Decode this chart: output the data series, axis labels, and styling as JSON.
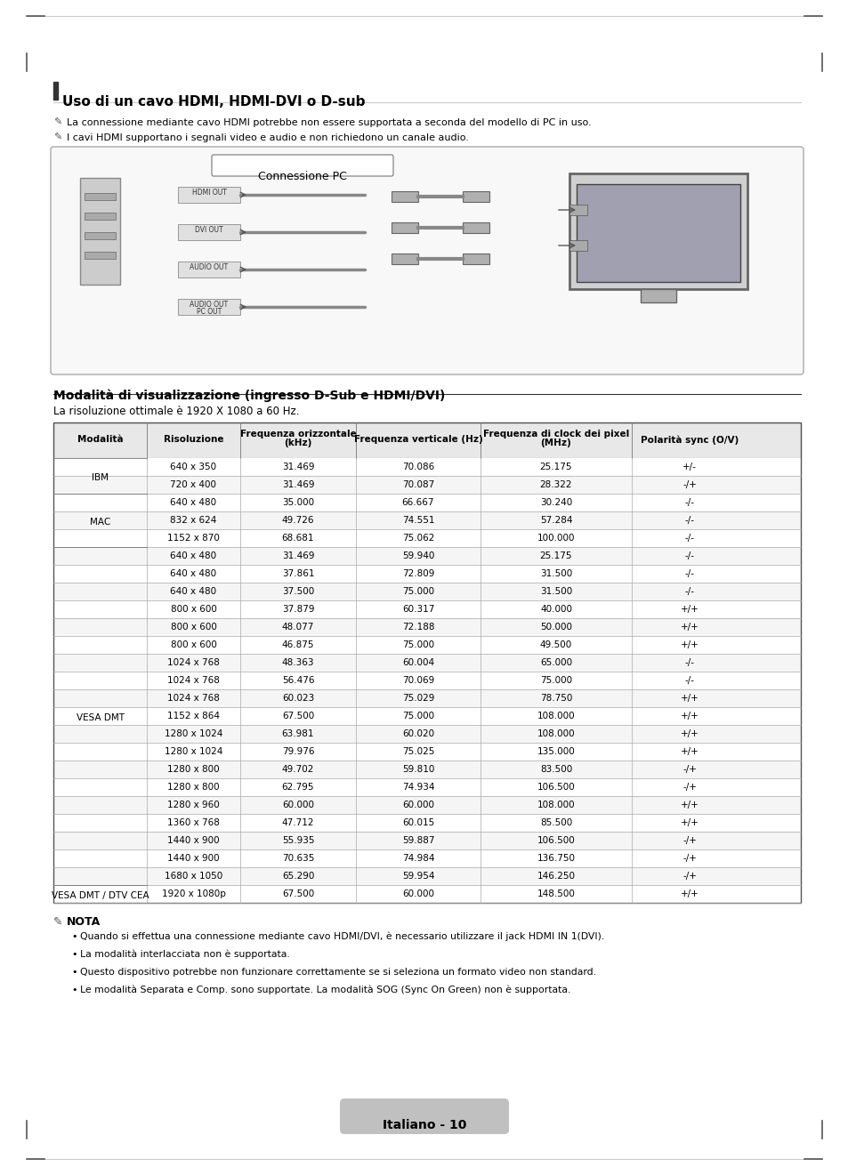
{
  "title": "Uso di un cavo HDMI, HDMI-DVI o D-sub",
  "note1": "La connessione mediante cavo HDMI potrebbe non essere supportata a seconda del modello di PC in uso.",
  "note2": "I cavi HDMI supportano i segnali video e audio e non richiedono un canale audio.",
  "table_title": "Modalità di visualizzazione (ingresso D-Sub e HDMI/DVI)",
  "table_subtitle": "La risoluzione ottimale è 1920 X 1080 a 60 Hz.",
  "col_headers": [
    "Modalità",
    "Risoluzione",
    "Frequenza orizzontale\n(kHz)",
    "Frequenza verticale (Hz)",
    "Frequenza di clock dei pixel\n(MHz)",
    "Polarità sync (O/V)"
  ],
  "table_data": [
    [
      "IBM",
      "640 x 350",
      "31.469",
      "70.086",
      "25.175",
      "+/-"
    ],
    [
      "IBM",
      "720 x 400",
      "31.469",
      "70.087",
      "28.322",
      "-/+"
    ],
    [
      "MAC",
      "640 x 480",
      "35.000",
      "66.667",
      "30.240",
      "-/-"
    ],
    [
      "MAC",
      "832 x 624",
      "49.726",
      "74.551",
      "57.284",
      "-/-"
    ],
    [
      "MAC",
      "1152 x 870",
      "68.681",
      "75.062",
      "100.000",
      "-/-"
    ],
    [
      "VESA DMT",
      "640 x 480",
      "31.469",
      "59.940",
      "25.175",
      "-/-"
    ],
    [
      "VESA DMT",
      "640 x 480",
      "37.861",
      "72.809",
      "31.500",
      "-/-"
    ],
    [
      "VESA DMT",
      "640 x 480",
      "37.500",
      "75.000",
      "31.500",
      "-/-"
    ],
    [
      "VESA DMT",
      "800 x 600",
      "37.879",
      "60.317",
      "40.000",
      "+/+"
    ],
    [
      "VESA DMT",
      "800 x 600",
      "48.077",
      "72.188",
      "50.000",
      "+/+"
    ],
    [
      "VESA DMT",
      "800 x 600",
      "46.875",
      "75.000",
      "49.500",
      "+/+"
    ],
    [
      "VESA DMT",
      "1024 x 768",
      "48.363",
      "60.004",
      "65.000",
      "-/-"
    ],
    [
      "VESA DMT",
      "1024 x 768",
      "56.476",
      "70.069",
      "75.000",
      "-/-"
    ],
    [
      "VESA DMT",
      "1024 x 768",
      "60.023",
      "75.029",
      "78.750",
      "+/+"
    ],
    [
      "VESA DMT",
      "1152 x 864",
      "67.500",
      "75.000",
      "108.000",
      "+/+"
    ],
    [
      "VESA DMT",
      "1280 x 1024",
      "63.981",
      "60.020",
      "108.000",
      "+/+"
    ],
    [
      "VESA DMT",
      "1280 x 1024",
      "79.976",
      "75.025",
      "135.000",
      "+/+"
    ],
    [
      "VESA DMT",
      "1280 x 800",
      "49.702",
      "59.810",
      "83.500",
      "-/+"
    ],
    [
      "VESA DMT",
      "1280 x 800",
      "62.795",
      "74.934",
      "106.500",
      "-/+"
    ],
    [
      "VESA DMT",
      "1280 x 960",
      "60.000",
      "60.000",
      "108.000",
      "+/+"
    ],
    [
      "VESA DMT",
      "1360 x 768",
      "47.712",
      "60.015",
      "85.500",
      "+/+"
    ],
    [
      "VESA DMT",
      "1440 x 900",
      "55.935",
      "59.887",
      "106.500",
      "-/+"
    ],
    [
      "VESA DMT",
      "1440 x 900",
      "70.635",
      "74.984",
      "136.750",
      "-/+"
    ],
    [
      "VESA DMT",
      "1680 x 1050",
      "65.290",
      "59.954",
      "146.250",
      "-/+"
    ],
    [
      "VESA DMT / DTV CEA",
      "1920 x 1080p",
      "67.500",
      "60.000",
      "148.500",
      "+/+"
    ]
  ],
  "nota_title": "NOTA",
  "nota_bullets": [
    "Quando si effettua una connessione mediante cavo HDMI/DVI, è necessario utilizzare il jack HDMI IN 1(DVI).",
    "La modalità interlacciata non è supportata.",
    "Questo dispositivo potrebbe non funzionare correttamente se si seleziona un formato video non standard.",
    "Le modalità Separata e Comp. sono supportate. La modalità SOG (Sync On Green) non è supportata."
  ],
  "page_label": "Italiano - 10",
  "bg_color": "#ffffff",
  "table_header_bg": "#e8e8e8",
  "table_row_bg1": "#ffffff",
  "table_row_bg2": "#f5f5f5",
  "border_color": "#999999",
  "text_color": "#000000",
  "title_bar_color": "#333333",
  "connector_box_bg": "#f0f0f0"
}
